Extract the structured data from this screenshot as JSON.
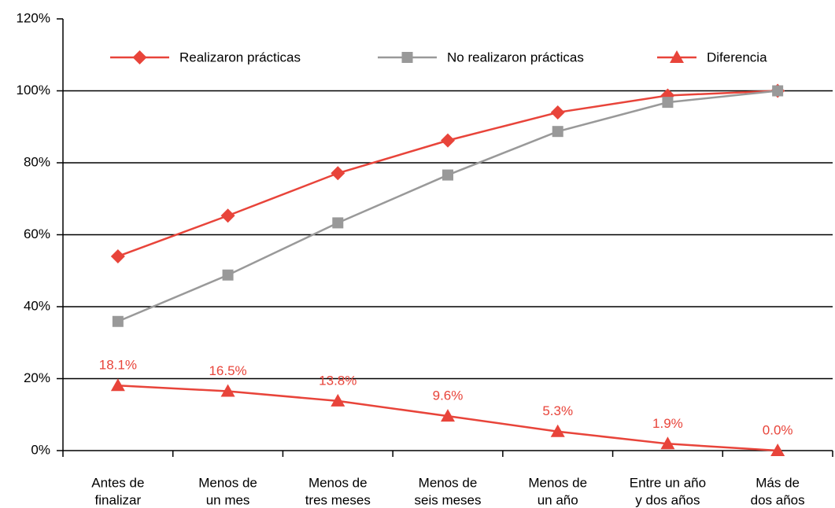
{
  "chart_data": {
    "type": "line",
    "categories": [
      [
        "Antes de",
        "finalizar"
      ],
      [
        "Menos de",
        "un mes"
      ],
      [
        "Menos de",
        "tres meses"
      ],
      [
        "Menos de",
        "seis meses"
      ],
      [
        "Menos de",
        "un año"
      ],
      [
        "Entre un año",
        "y dos años"
      ],
      [
        "Más de",
        "dos años"
      ]
    ],
    "series": [
      {
        "name": "Realizaron prácticas",
        "color": "#e8443a",
        "marker": "diamond",
        "values": [
          54.0,
          65.3,
          77.1,
          86.2,
          94.0,
          98.7,
          100.0
        ]
      },
      {
        "name": "No realizaron prácticas",
        "color": "#999999",
        "marker": "square",
        "values": [
          35.9,
          48.8,
          63.3,
          76.6,
          88.7,
          96.8,
          100.0
        ]
      },
      {
        "name": "Diferencia",
        "color": "#e8443a",
        "marker": "triangle",
        "values": [
          18.1,
          16.5,
          13.8,
          9.6,
          5.3,
          1.9,
          0.0
        ],
        "value_labels": [
          "18.1%",
          "16.5%",
          "13.8%",
          "9.6%",
          "5.3%",
          "1.9%",
          "0.0%"
        ]
      }
    ],
    "ylim": [
      0,
      120
    ],
    "yticks": [
      {
        "value": 0,
        "label": "0%"
      },
      {
        "value": 20,
        "label": "20%"
      },
      {
        "value": 40,
        "label": "40%"
      },
      {
        "value": 60,
        "label": "60%"
      },
      {
        "value": 80,
        "label": "80%"
      },
      {
        "value": 100,
        "label": "100%"
      },
      {
        "value": 120,
        "label": "120%"
      }
    ],
    "grid": true,
    "legend": "top"
  }
}
